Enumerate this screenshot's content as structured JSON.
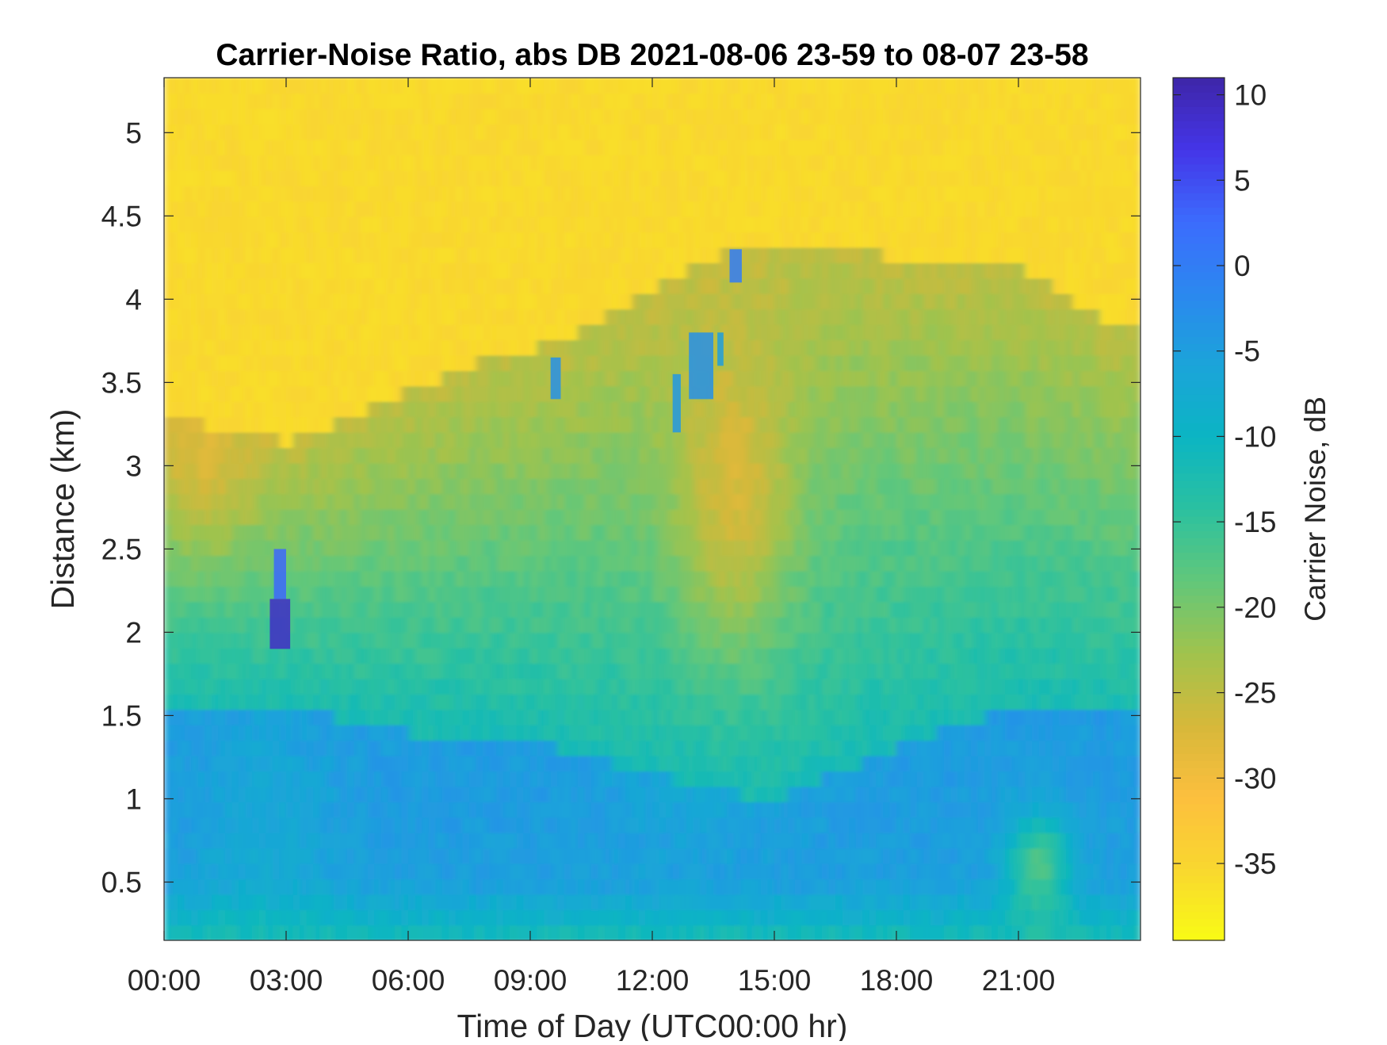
{
  "chart_data": {
    "type": "heatmap",
    "title": "Carrier-Noise Ratio, abs DB 2021-08-06 23-59 to 08-07 23-58",
    "xlabel": "Time of Day (UTC00:00 hr)",
    "ylabel": "Distance (km)",
    "colorbar_label": "Carrier Noise, dB",
    "xlim": [
      0,
      24
    ],
    "ylim": [
      0.15,
      5.33
    ],
    "clim": [
      -39.5,
      11
    ],
    "x_ticks": [
      0,
      3,
      6,
      9,
      12,
      15,
      18,
      21
    ],
    "x_tick_labels": [
      "00:00",
      "03:00",
      "06:00",
      "09:00",
      "12:00",
      "15:00",
      "18:00",
      "21:00"
    ],
    "y_ticks": [
      0.5,
      1,
      1.5,
      2,
      2.5,
      3,
      3.5,
      4,
      4.5,
      5
    ],
    "y_tick_labels": [
      "0.5",
      "1",
      "1.5",
      "2",
      "2.5",
      "3",
      "3.5",
      "4",
      "4.5",
      "5"
    ],
    "colorbar_ticks": [
      10,
      5,
      0,
      -5,
      -10,
      -15,
      -20,
      -25,
      -30,
      -35
    ],
    "colorbar_tick_labels": [
      "10",
      "5",
      "0",
      "-5",
      "-10",
      "-15",
      "-20",
      "-25",
      "-30",
      "-35"
    ],
    "colormap": "parula",
    "colormap_stops": [
      "#3e26a8",
      "#4435e8",
      "#3c6cfd",
      "#2b88ef",
      "#1ba4d9",
      "#0bb5c3",
      "#2bc1a0",
      "#62c77a",
      "#a0c34d",
      "#d6b83a",
      "#fcbf3e",
      "#f9d72f",
      "#f9fb15"
    ],
    "grid": false,
    "background_value_above_boundary": -35.5,
    "boundary_layer_top_km": [
      [
        0,
        3.25
      ],
      [
        1,
        3.25
      ],
      [
        2,
        3.2
      ],
      [
        3,
        3.15
      ],
      [
        4,
        3.22
      ],
      [
        5,
        3.35
      ],
      [
        6,
        3.45
      ],
      [
        7,
        3.55
      ],
      [
        8,
        3.65
      ],
      [
        9,
        3.7
      ],
      [
        10,
        3.78
      ],
      [
        11,
        3.92
      ],
      [
        12,
        4.05
      ],
      [
        13,
        4.2
      ],
      [
        14,
        4.3
      ],
      [
        15,
        4.3
      ],
      [
        16,
        4.32
      ],
      [
        17,
        4.3
      ],
      [
        18,
        4.25
      ],
      [
        19,
        4.22
      ],
      [
        20,
        4.25
      ],
      [
        21,
        4.2
      ],
      [
        22,
        4.05
      ],
      [
        23,
        3.9
      ],
      [
        24,
        3.8
      ]
    ],
    "near_surface_minimum_km": [
      [
        0,
        1.5
      ],
      [
        3,
        1.55
      ],
      [
        6,
        1.4
      ],
      [
        9,
        1.35
      ],
      [
        12,
        1.15
      ],
      [
        13.5,
        1.05
      ],
      [
        15,
        1.0
      ],
      [
        16.5,
        1.15
      ],
      [
        18,
        1.3
      ],
      [
        19.5,
        1.45
      ],
      [
        21,
        1.55
      ],
      [
        24,
        1.5
      ]
    ],
    "cloud_echoes": [
      {
        "x": [
          2.6,
          3.1
        ],
        "y": [
          1.9,
          2.2
        ],
        "value": 9
      },
      {
        "x": [
          2.7,
          3.0
        ],
        "y": [
          2.2,
          2.5
        ],
        "value": 3
      },
      {
        "x": [
          9.5,
          9.75
        ],
        "y": [
          3.4,
          3.65
        ],
        "value": -3
      },
      {
        "x": [
          12.5,
          12.7
        ],
        "y": [
          3.2,
          3.55
        ],
        "value": -4
      },
      {
        "x": [
          12.9,
          13.5
        ],
        "y": [
          3.4,
          3.8
        ],
        "value": -3
      },
      {
        "x": [
          13.6,
          13.75
        ],
        "y": [
          3.6,
          3.8
        ],
        "value": -5
      },
      {
        "x": [
          13.9,
          14.2
        ],
        "y": [
          4.1,
          4.3
        ],
        "value": 0
      }
    ]
  }
}
